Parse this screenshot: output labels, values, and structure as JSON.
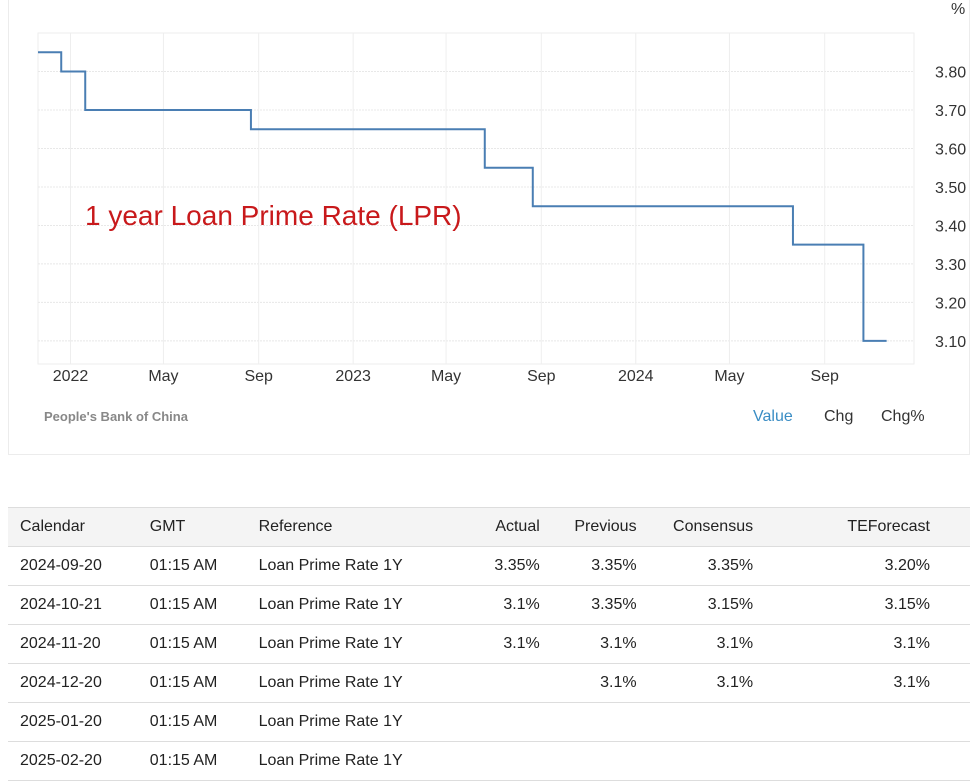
{
  "chart_data": {
    "type": "line",
    "step": true,
    "title": "",
    "annotation": "1 year Loan Prime Rate (LPR)",
    "unit": "%",
    "source": "People's Bank of China",
    "series": [
      {
        "color": "#4a7eb3",
        "points": [
          [
            "2021-11-20",
            3.85
          ],
          [
            "2021-12-20",
            3.8
          ],
          [
            "2022-01-20",
            3.7
          ],
          [
            "2022-08-22",
            3.65
          ],
          [
            "2023-06-20",
            3.55
          ],
          [
            "2023-08-21",
            3.45
          ],
          [
            "2024-07-22",
            3.35
          ],
          [
            "2024-10-21",
            3.1
          ],
          [
            "2024-11-20",
            3.1
          ]
        ]
      }
    ],
    "yticks": [
      3.8,
      3.7,
      3.6,
      3.5,
      3.4,
      3.3,
      3.2,
      3.1
    ],
    "ytick_labels": [
      "3.80",
      "3.70",
      "3.60",
      "3.50",
      "3.40",
      "3.30",
      "3.20",
      "3.10"
    ],
    "ylim": [
      3.04,
      3.9
    ],
    "xlim": [
      "2021-11-20",
      "2024-12-15"
    ],
    "xticks": [
      [
        "2022-01-01",
        "2022"
      ],
      [
        "2022-05-01",
        "May"
      ],
      [
        "2022-09-01",
        "Sep"
      ],
      [
        "2023-01-01",
        "2023"
      ],
      [
        "2023-05-01",
        "May"
      ],
      [
        "2023-09-01",
        "Sep"
      ],
      [
        "2024-01-01",
        "2024"
      ],
      [
        "2024-05-01",
        "May"
      ],
      [
        "2024-09-01",
        "Sep"
      ]
    ],
    "grid": true,
    "y_axis_side": "right"
  },
  "modes": {
    "value": "Value",
    "chg": "Chg",
    "chgpct": "Chg%",
    "active_color": "#3a8dc4"
  },
  "table": {
    "headers": [
      "Calendar",
      "GMT",
      "Reference",
      "Actual",
      "Previous",
      "Consensus",
      "TEForecast"
    ],
    "rows": [
      [
        "2024-09-20",
        "01:15 AM",
        "Loan Prime Rate 1Y",
        "3.35%",
        "3.35%",
        "3.35%",
        "3.20%"
      ],
      [
        "2024-10-21",
        "01:15 AM",
        "Loan Prime Rate 1Y",
        "3.1%",
        "3.35%",
        "3.15%",
        "3.15%"
      ],
      [
        "2024-11-20",
        "01:15 AM",
        "Loan Prime Rate 1Y",
        "3.1%",
        "3.1%",
        "3.1%",
        "3.1%"
      ],
      [
        "2024-12-20",
        "01:15 AM",
        "Loan Prime Rate 1Y",
        "",
        "3.1%",
        "3.1%",
        "3.1%"
      ],
      [
        "2025-01-20",
        "01:15 AM",
        "Loan Prime Rate 1Y",
        "",
        "",
        "",
        ""
      ],
      [
        "2025-02-20",
        "01:15 AM",
        "Loan Prime Rate 1Y",
        "",
        "",
        "",
        ""
      ]
    ]
  }
}
